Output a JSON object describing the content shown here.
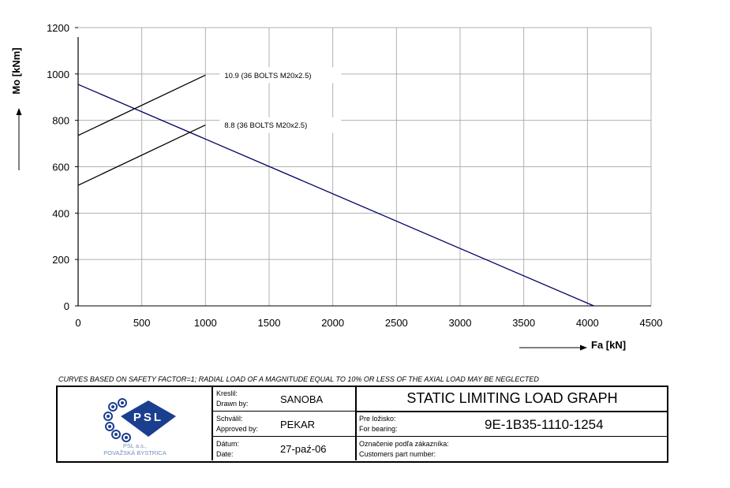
{
  "chart_data": {
    "type": "line",
    "xlabel": "Fa [kN]",
    "ylabel": "Mo [kNm]",
    "xlim": [
      0,
      4500
    ],
    "ylim": [
      0,
      1200
    ],
    "x_ticks": [
      "0",
      "500",
      "1000",
      "1500",
      "2000",
      "2500",
      "3000",
      "3500",
      "4000",
      "4500"
    ],
    "y_ticks": [
      "0",
      "200",
      "400",
      "600",
      "800",
      "1000",
      "1200"
    ],
    "grid": true,
    "series": [
      {
        "name": "",
        "color": "#000066",
        "x": [
          0,
          4050
        ],
        "y": [
          955,
          0
        ]
      },
      {
        "name": "10.9 (36 BOLTS M20x2.5)",
        "color": "#000000",
        "x": [
          0,
          1000
        ],
        "y": [
          735,
          995
        ]
      },
      {
        "name": "8.8 (36 BOLTS M20x2.5)",
        "color": "#000000",
        "x": [
          0,
          1000
        ],
        "y": [
          520,
          780
        ]
      }
    ]
  },
  "note": "CURVES BASED ON SAFETY FACTOR=1; RADIAL LOAD OF A MAGNITUDE EQUAL TO 10% OR LESS OF THE AXIAL LOAD MAY BE NEGLECTED",
  "title_block": {
    "logo_text": "PSL",
    "company_line1": "PSL a.s.,",
    "company_line2": "POVAŽSKÁ BYSTRICA",
    "drawn_label_sk": "Kreslil:",
    "drawn_label_en": "Drawn by:",
    "drawn_value": "SANOBA",
    "approved_label_sk": "Schválil:",
    "approved_label_en": "Approved by:",
    "approved_value": "PEKAR",
    "date_label_sk": "Dátum:",
    "date_label_en": "Date:",
    "date_value": "27-paź-06",
    "graph_title": "STATIC LIMITING LOAD GRAPH",
    "bearing_label_sk": "Pre ložisko:",
    "bearing_label_en": "For bearing:",
    "bearing_value": "9E-1B35-1110-1254",
    "customer_label_sk": "Označenie podľa zákazníka:",
    "customer_label_en": "Customers part number:",
    "customer_value": ""
  }
}
